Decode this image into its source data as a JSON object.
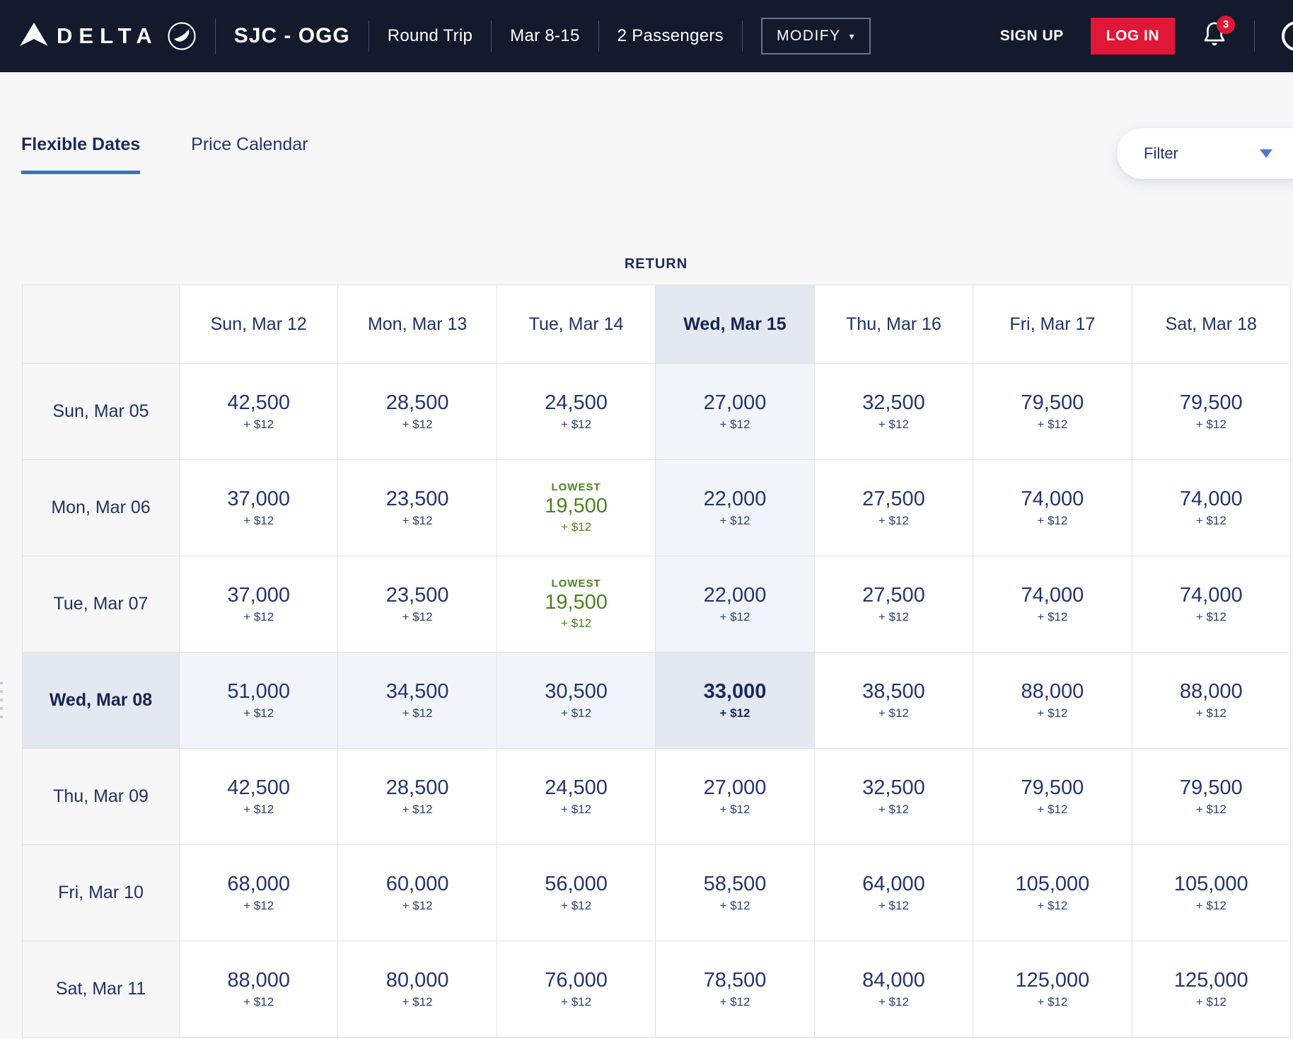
{
  "navbar": {
    "brand": "DELTA",
    "route": "SJC - OGG",
    "trip_type": "Round Trip",
    "dates": "Mar 8-15",
    "passengers": "2 Passengers",
    "modify_label": "MODIFY",
    "sign_up_label": "SIGN UP",
    "log_in_label": "LOG IN",
    "notification_count": "3"
  },
  "tabs": [
    {
      "label": "Flexible Dates",
      "active": true
    },
    {
      "label": "Price Calendar",
      "active": false
    }
  ],
  "filter": {
    "label": "Filter"
  },
  "matrix": {
    "title": "RETURN",
    "column_headers": [
      "Sun, Mar 12",
      "Mon, Mar 13",
      "Tue, Mar 14",
      "Wed, Mar 15",
      "Thu, Mar 16",
      "Fri, Mar 17",
      "Sat, Mar 18"
    ],
    "row_headers": [
      "Sun, Mar 05",
      "Mon, Mar 06",
      "Tue, Mar 07",
      "Wed, Mar 08",
      "Thu, Mar 09",
      "Fri, Mar 10",
      "Sat, Mar 11"
    ],
    "selected_column": 3,
    "selected_row": 3,
    "lowest_label": "LOWEST",
    "fee_label": "+ $12",
    "lowest_cells": [
      [
        1,
        2
      ],
      [
        2,
        2
      ]
    ],
    "miles": [
      [
        "42,500",
        "28,500",
        "24,500",
        "27,000",
        "32,500",
        "79,500",
        "79,500"
      ],
      [
        "37,000",
        "23,500",
        "19,500",
        "22,000",
        "27,500",
        "74,000",
        "74,000"
      ],
      [
        "37,000",
        "23,500",
        "19,500",
        "22,000",
        "27,500",
        "74,000",
        "74,000"
      ],
      [
        "51,000",
        "34,500",
        "30,500",
        "33,000",
        "38,500",
        "88,000",
        "88,000"
      ],
      [
        "42,500",
        "28,500",
        "24,500",
        "27,000",
        "32,500",
        "79,500",
        "79,500"
      ],
      [
        "68,000",
        "60,000",
        "56,000",
        "58,500",
        "64,000",
        "105,000",
        "105,000"
      ],
      [
        "88,000",
        "80,000",
        "76,000",
        "78,500",
        "84,000",
        "125,000",
        "125,000"
      ]
    ]
  },
  "colors": {
    "delta_red": "#e11737",
    "navy_text": "#24356e",
    "lowest_green": "#4a8320",
    "highlight_strong": "#e3e8f1",
    "highlight_light": "#f1f4f9",
    "accent_blue": "#3f6fc4",
    "navbar_bg": "#121a2c"
  }
}
